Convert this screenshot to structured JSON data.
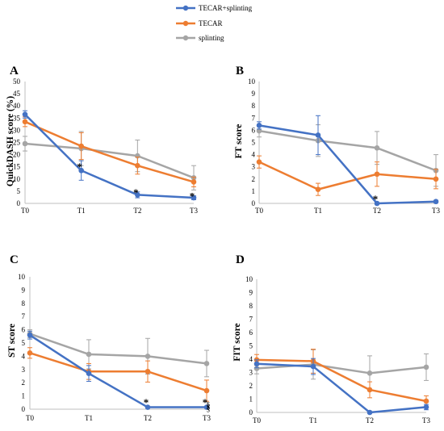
{
  "legend": [
    {
      "name": "TECAR+splinting",
      "color": "#4472C4"
    },
    {
      "name": "TECAR",
      "color": "#ED7D31"
    },
    {
      "name": "splinting",
      "color": "#A5A5A5"
    }
  ],
  "chart_data": [
    {
      "panel": "A",
      "type": "line",
      "ylabel": "QuickDASH score (%)",
      "xlabel": "",
      "categories": [
        "T0",
        "T1",
        "T2",
        "T3"
      ],
      "ylim": [
        0,
        50
      ],
      "yticks": [
        0,
        5,
        10,
        15,
        20,
        25,
        30,
        35,
        40,
        45,
        50
      ],
      "grid": false,
      "series": [
        {
          "name": "TECAR+splinting",
          "values": [
            36.5,
            13.5,
            3.5,
            2.3
          ],
          "errors": [
            1.5,
            4.0,
            1.2,
            0.8
          ]
        },
        {
          "name": "TECAR",
          "values": [
            33.5,
            23.5,
            15.5,
            8.8
          ],
          "errors": [
            2.0,
            5.5,
            3.5,
            2.0
          ]
        },
        {
          "name": "splinting",
          "values": [
            24.5,
            22.5,
            19.5,
            10.5
          ],
          "errors": [
            3.0,
            7.0,
            6.5,
            5.0
          ]
        }
      ],
      "annotations": [
        {
          "text": "*",
          "category": "T1",
          "y": 15.5
        },
        {
          "text": "*",
          "category": "T2",
          "y": 5.0
        },
        {
          "text": "*",
          "category": "T3",
          "y": 3.5
        }
      ]
    },
    {
      "panel": "B",
      "type": "line",
      "ylabel": "FT score",
      "xlabel": "",
      "categories": [
        "T0",
        "T1",
        "T2",
        "T3"
      ],
      "ylim": [
        0,
        10
      ],
      "yticks": [
        0,
        1,
        2,
        3,
        4,
        5,
        6,
        7,
        8,
        9,
        10
      ],
      "grid": false,
      "series": [
        {
          "name": "TECAR+splinting",
          "values": [
            6.4,
            5.6,
            0.0,
            0.15
          ],
          "errors": [
            0.3,
            1.6,
            0.0,
            0.1
          ]
        },
        {
          "name": "TECAR",
          "values": [
            3.4,
            1.15,
            2.4,
            2.0
          ],
          "errors": [
            0.5,
            0.5,
            1.0,
            0.8
          ]
        },
        {
          "name": "splinting",
          "values": [
            5.95,
            5.15,
            4.55,
            2.7
          ],
          "errors": [
            0.5,
            1.3,
            1.35,
            1.3
          ]
        }
      ],
      "annotations": [
        {
          "text": "*",
          "category": "T2",
          "y": 0.45
        }
      ]
    },
    {
      "panel": "C",
      "type": "line",
      "ylabel": "ST score",
      "xlabel": "",
      "categories": [
        "T0",
        "T1",
        "T2",
        "T3"
      ],
      "ylim": [
        0,
        10
      ],
      "yticks": [
        0,
        1,
        2,
        3,
        4,
        5,
        6,
        7,
        8,
        9,
        10
      ],
      "grid": false,
      "series": [
        {
          "name": "TECAR+splinting",
          "values": [
            5.6,
            2.7,
            0.15,
            0.15
          ],
          "errors": [
            0.3,
            0.6,
            0.0,
            0.0
          ]
        },
        {
          "name": "TECAR",
          "values": [
            4.25,
            2.85,
            2.85,
            1.4
          ],
          "errors": [
            0.4,
            0.6,
            0.8,
            0.8
          ]
        },
        {
          "name": "splinting",
          "values": [
            5.7,
            4.15,
            4.0,
            3.45
          ],
          "errors": [
            0.3,
            1.1,
            1.35,
            1.0
          ]
        }
      ],
      "annotations": [
        {
          "text": "*",
          "category": "T2",
          "y": 0.6
        },
        {
          "text": "*",
          "category": "T3",
          "y": 0.6
        },
        {
          "text": "§",
          "category": "T3",
          "y": 0.3
        },
        {
          "text": "§",
          "category": "T3",
          "y": 0.05
        }
      ]
    },
    {
      "panel": "D",
      "type": "line",
      "ylabel": "FIT score",
      "xlabel": "",
      "categories": [
        "T0",
        "T1",
        "T2",
        "T3"
      ],
      "ylim": [
        0,
        10
      ],
      "yticks": [
        0,
        1,
        2,
        3,
        4,
        5,
        6,
        7,
        8,
        9,
        10
      ],
      "grid": false,
      "series": [
        {
          "name": "TECAR+splinting",
          "values": [
            3.65,
            3.45,
            0.0,
            0.4
          ],
          "errors": [
            0.3,
            0.6,
            0.0,
            0.2
          ]
        },
        {
          "name": "TECAR",
          "values": [
            3.95,
            3.85,
            1.7,
            0.85
          ],
          "errors": [
            0.4,
            0.9,
            0.6,
            0.4
          ]
        },
        {
          "name": "splinting",
          "values": [
            3.3,
            3.6,
            2.95,
            3.4
          ],
          "errors": [
            0.4,
            1.1,
            1.3,
            1.0
          ]
        }
      ],
      "annotations": []
    }
  ]
}
